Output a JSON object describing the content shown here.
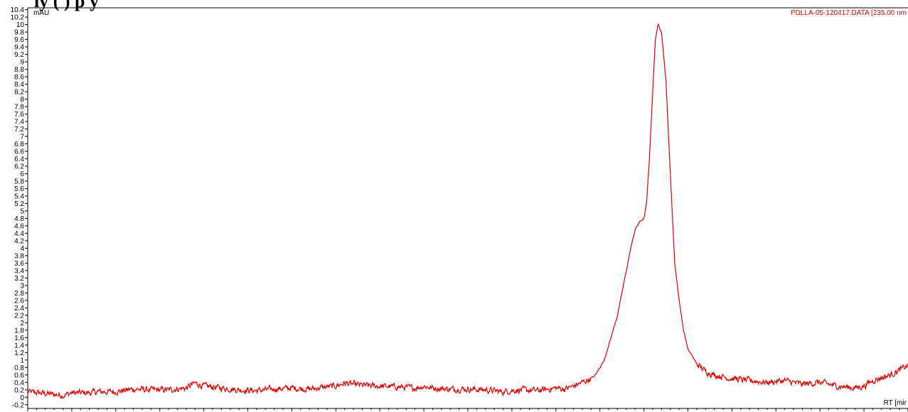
{
  "header": {
    "text": "ly   (   )    p y"
  },
  "chart_data": {
    "type": "line",
    "title": "",
    "ylabel": "mAU",
    "xlabel": "RT [mir",
    "legend": {
      "entry": "PDLLA-05-120417.DATA [235.00 nm",
      "placement": "top-right"
    },
    "ylim": [
      -0.3,
      10.45
    ],
    "xlim": [
      0,
      100
    ],
    "grid": false,
    "ytick_step": 0.2,
    "color": "#e00000",
    "series": [
      {
        "x": [
          0,
          2,
          4,
          5,
          7,
          8,
          10,
          12,
          14,
          16,
          18,
          19,
          20,
          22,
          24,
          26,
          28,
          30,
          32,
          34,
          35,
          36,
          38,
          40,
          42,
          44,
          45,
          46,
          48,
          50,
          52,
          54,
          55,
          56,
          58,
          60,
          61,
          62,
          63,
          64,
          64.5,
          65,
          65.5,
          66,
          67,
          67.5,
          68,
          68.5,
          69,
          69.5,
          70,
          70.3,
          70.6,
          71,
          71.3,
          71.6,
          72,
          72.5,
          73,
          73.5,
          74,
          74.5,
          75,
          76,
          77,
          78,
          80,
          82,
          84,
          86,
          88,
          90,
          92,
          94,
          95,
          96,
          98,
          100
        ],
        "y": [
          0.15,
          0.1,
          0.05,
          0.12,
          0.12,
          0.15,
          0.15,
          0.22,
          0.2,
          0.2,
          0.25,
          0.38,
          0.3,
          0.25,
          0.2,
          0.18,
          0.22,
          0.25,
          0.22,
          0.28,
          0.3,
          0.38,
          0.32,
          0.3,
          0.28,
          0.25,
          0.3,
          0.25,
          0.22,
          0.22,
          0.2,
          0.15,
          0.18,
          0.2,
          0.18,
          0.25,
          0.22,
          0.3,
          0.4,
          0.5,
          0.6,
          0.8,
          1.0,
          1.4,
          2.2,
          2.8,
          3.4,
          4.0,
          4.5,
          4.7,
          4.8,
          5.2,
          6.3,
          8.2,
          9.6,
          10.0,
          9.8,
          8.5,
          6.0,
          3.6,
          2.6,
          1.8,
          1.3,
          0.9,
          0.7,
          0.6,
          0.5,
          0.45,
          0.4,
          0.45,
          0.35,
          0.4,
          0.3,
          0.25,
          0.3,
          0.45,
          0.6,
          0.85
        ]
      }
    ]
  }
}
